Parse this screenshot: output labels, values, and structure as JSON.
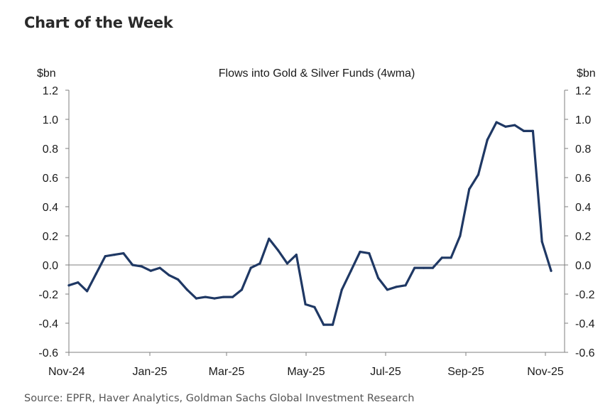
{
  "page": {
    "heading": "Chart of the Week",
    "source": "Source: EPFR, Haver Analytics, Goldman Sachs Global Investment Research"
  },
  "colors": {
    "line": "#1f3864",
    "axis": "#7f7f7f"
  },
  "chart_data": {
    "type": "line",
    "title": "Flows into Gold & Silver Funds (4wma)",
    "ylabel_left": "$bn",
    "ylabel_right": "$bn",
    "ylim": [
      -0.6,
      1.2
    ],
    "y_ticks": [
      "1.2",
      "1.0",
      "0.8",
      "0.6",
      "0.4",
      "0.2",
      "0.0",
      "-0.2",
      "-0.4",
      "-0.6"
    ],
    "x_tick_labels": [
      "Nov-24",
      "Jan-25",
      "Mar-25",
      "May-25",
      "Jul-25",
      "Sep-25",
      "Nov-25"
    ],
    "grid": false,
    "series": [
      {
        "values": [
          -0.14,
          -0.12,
          -0.18,
          -0.06,
          0.06,
          0.07,
          0.08,
          0.0,
          -0.01,
          -0.04,
          -0.02,
          -0.07,
          -0.1,
          -0.17,
          -0.23,
          -0.22,
          -0.23,
          -0.22,
          -0.22,
          -0.17,
          -0.02,
          0.01,
          0.18,
          0.1,
          0.01,
          0.07,
          -0.27,
          -0.29,
          -0.41,
          -0.41,
          -0.17,
          -0.04,
          0.09,
          0.08,
          -0.09,
          -0.17,
          -0.15,
          -0.14,
          -0.02,
          -0.02,
          -0.02,
          0.05,
          0.05,
          0.2,
          0.52,
          0.62,
          0.86,
          0.98,
          0.95,
          0.96,
          0.92,
          0.92,
          0.16,
          -0.04
        ]
      }
    ]
  }
}
